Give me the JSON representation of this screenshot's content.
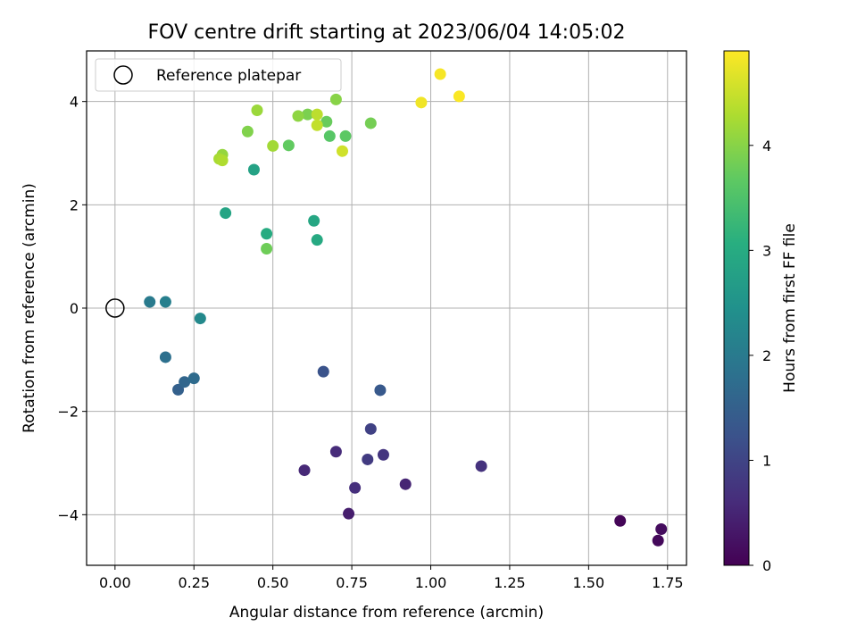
{
  "chart_data": {
    "type": "scatter",
    "title": "FOV centre drift starting at 2023/06/04 14:05:02",
    "xlabel": "Angular distance from reference (arcmin)",
    "ylabel": "Rotation from reference (arcmin)",
    "xlim": [
      -0.09,
      1.81
    ],
    "ylim": [
      -4.98,
      4.98
    ],
    "xticks": [
      0.0,
      0.25,
      0.5,
      0.75,
      1.0,
      1.25,
      1.5,
      1.75
    ],
    "xtick_labels": [
      "0.00",
      "0.25",
      "0.50",
      "0.75",
      "1.00",
      "1.25",
      "1.50",
      "1.75"
    ],
    "yticks": [
      -4,
      -2,
      0,
      2,
      4
    ],
    "ytick_labels": [
      "−4",
      "−2",
      "0",
      "2",
      "4"
    ],
    "grid": true,
    "legend": {
      "placement": "top-left",
      "entries": [
        "Reference platepar"
      ]
    },
    "reference_point": {
      "x": 0.0,
      "y": 0.0
    },
    "colorbar": {
      "label": "Hours from first FF file",
      "colormap": "viridis",
      "range": [
        0,
        4.9
      ],
      "ticks": [
        0,
        1,
        2,
        3,
        4
      ],
      "tick_labels": [
        "0",
        "1",
        "2",
        "3",
        "4"
      ]
    },
    "points": [
      {
        "x": 1.6,
        "y": -4.12,
        "t": 0.05
      },
      {
        "x": 1.72,
        "y": -4.5,
        "t": 0.1
      },
      {
        "x": 1.73,
        "y": -4.28,
        "t": 0.15
      },
      {
        "x": 0.74,
        "y": -3.98,
        "t": 0.4
      },
      {
        "x": 0.92,
        "y": -3.41,
        "t": 0.5
      },
      {
        "x": 0.6,
        "y": -3.14,
        "t": 0.55
      },
      {
        "x": 0.7,
        "y": -2.78,
        "t": 0.6
      },
      {
        "x": 0.76,
        "y": -3.48,
        "t": 0.65
      },
      {
        "x": 1.16,
        "y": -3.06,
        "t": 0.7
      },
      {
        "x": 0.85,
        "y": -2.84,
        "t": 0.75
      },
      {
        "x": 0.8,
        "y": -2.93,
        "t": 0.85
      },
      {
        "x": 0.81,
        "y": -2.34,
        "t": 0.95
      },
      {
        "x": 0.66,
        "y": -1.23,
        "t": 1.25
      },
      {
        "x": 0.84,
        "y": -1.59,
        "t": 1.35
      },
      {
        "x": 0.2,
        "y": -1.58,
        "t": 1.5
      },
      {
        "x": 0.22,
        "y": -1.43,
        "t": 1.6
      },
      {
        "x": 0.25,
        "y": -1.36,
        "t": 1.7
      },
      {
        "x": 0.16,
        "y": -0.95,
        "t": 1.8
      },
      {
        "x": 0.11,
        "y": 0.12,
        "t": 2.0
      },
      {
        "x": 0.16,
        "y": 0.12,
        "t": 2.1
      },
      {
        "x": 0.27,
        "y": -0.2,
        "t": 2.3
      },
      {
        "x": 0.44,
        "y": 2.68,
        "t": 2.8
      },
      {
        "x": 0.35,
        "y": 1.84,
        "t": 2.85
      },
      {
        "x": 0.63,
        "y": 1.69,
        "t": 2.9
      },
      {
        "x": 0.64,
        "y": 1.32,
        "t": 2.95
      },
      {
        "x": 0.48,
        "y": 1.44,
        "t": 3.0
      },
      {
        "x": 0.68,
        "y": 3.33,
        "t": 3.6
      },
      {
        "x": 0.73,
        "y": 3.33,
        "t": 3.65
      },
      {
        "x": 0.55,
        "y": 3.15,
        "t": 3.7
      },
      {
        "x": 0.67,
        "y": 3.61,
        "t": 3.75
      },
      {
        "x": 0.48,
        "y": 1.15,
        "t": 3.8
      },
      {
        "x": 0.81,
        "y": 3.58,
        "t": 3.85
      },
      {
        "x": 0.61,
        "y": 3.75,
        "t": 3.9
      },
      {
        "x": 0.42,
        "y": 3.42,
        "t": 3.95
      },
      {
        "x": 0.7,
        "y": 4.04,
        "t": 4.0
      },
      {
        "x": 0.58,
        "y": 3.72,
        "t": 4.05
      },
      {
        "x": 0.34,
        "y": 2.97,
        "t": 4.1
      },
      {
        "x": 0.45,
        "y": 3.83,
        "t": 4.15
      },
      {
        "x": 0.5,
        "y": 3.14,
        "t": 4.2
      },
      {
        "x": 0.33,
        "y": 2.89,
        "t": 4.25
      },
      {
        "x": 0.34,
        "y": 2.86,
        "t": 4.3
      },
      {
        "x": 0.64,
        "y": 3.75,
        "t": 4.4
      },
      {
        "x": 0.64,
        "y": 3.54,
        "t": 4.45
      },
      {
        "x": 0.72,
        "y": 3.04,
        "t": 4.55
      },
      {
        "x": 0.97,
        "y": 3.98,
        "t": 4.8
      },
      {
        "x": 1.03,
        "y": 4.53,
        "t": 4.85
      },
      {
        "x": 1.09,
        "y": 4.1,
        "t": 4.88
      }
    ]
  }
}
